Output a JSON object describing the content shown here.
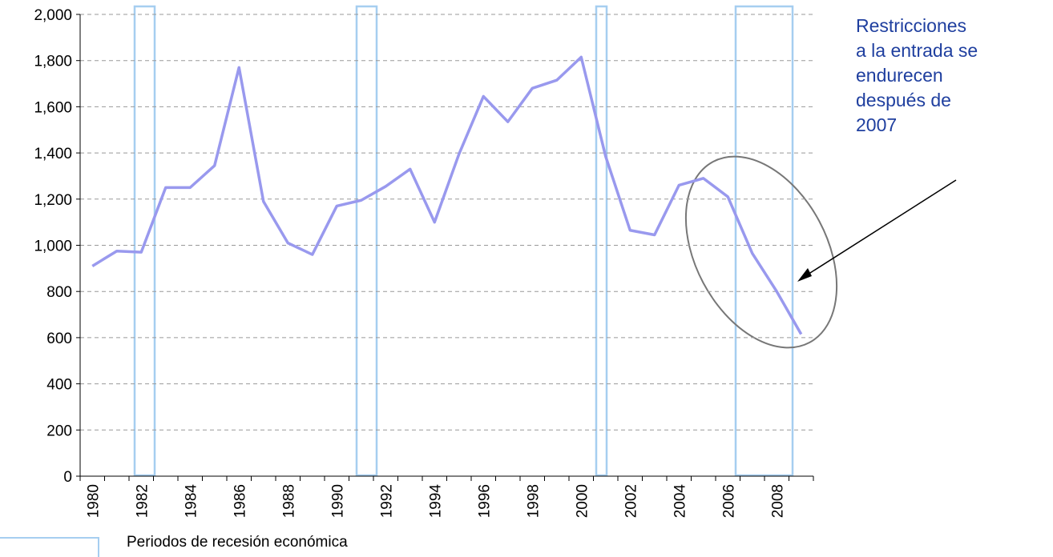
{
  "chart_data": {
    "type": "line",
    "annotation": [
      "Restricciones",
      "a la entrada se",
      "endurecen",
      "después de",
      "2007"
    ],
    "legend_label": "Periodos de recesión económica",
    "categories": [
      "1980",
      null,
      "1982",
      null,
      "1984",
      null,
      "1986",
      null,
      "1988",
      null,
      "1990",
      null,
      "1992",
      null,
      "1994",
      null,
      "1996",
      null,
      "1998",
      null,
      "2000",
      null,
      "2002",
      null,
      "2004",
      null,
      "2006",
      null,
      "2008",
      null
    ],
    "values": [
      910,
      975,
      970,
      1250,
      1250,
      1345,
      1770,
      1190,
      1010,
      960,
      1170,
      1195,
      1255,
      1330,
      1100,
      1395,
      1645,
      1535,
      1680,
      1715,
      1815,
      1385,
      1065,
      1045,
      1260,
      1290,
      1210,
      965,
      800,
      615
    ],
    "color": "#9999ee",
    "ylim": [
      0,
      2000
    ],
    "yticks": [
      0,
      200,
      400,
      600,
      800,
      {
        "value": 1000,
        "label": "1,000"
      },
      {
        "value": 1200,
        "label": "1,200"
      },
      {
        "value": 1400,
        "label": "1,400"
      },
      {
        "value": 1600,
        "label": "1,600"
      },
      {
        "value": 1800,
        "label": "1,800"
      },
      {
        "value": 2000,
        "label": "2,000"
      }
    ],
    "grid": true
  }
}
